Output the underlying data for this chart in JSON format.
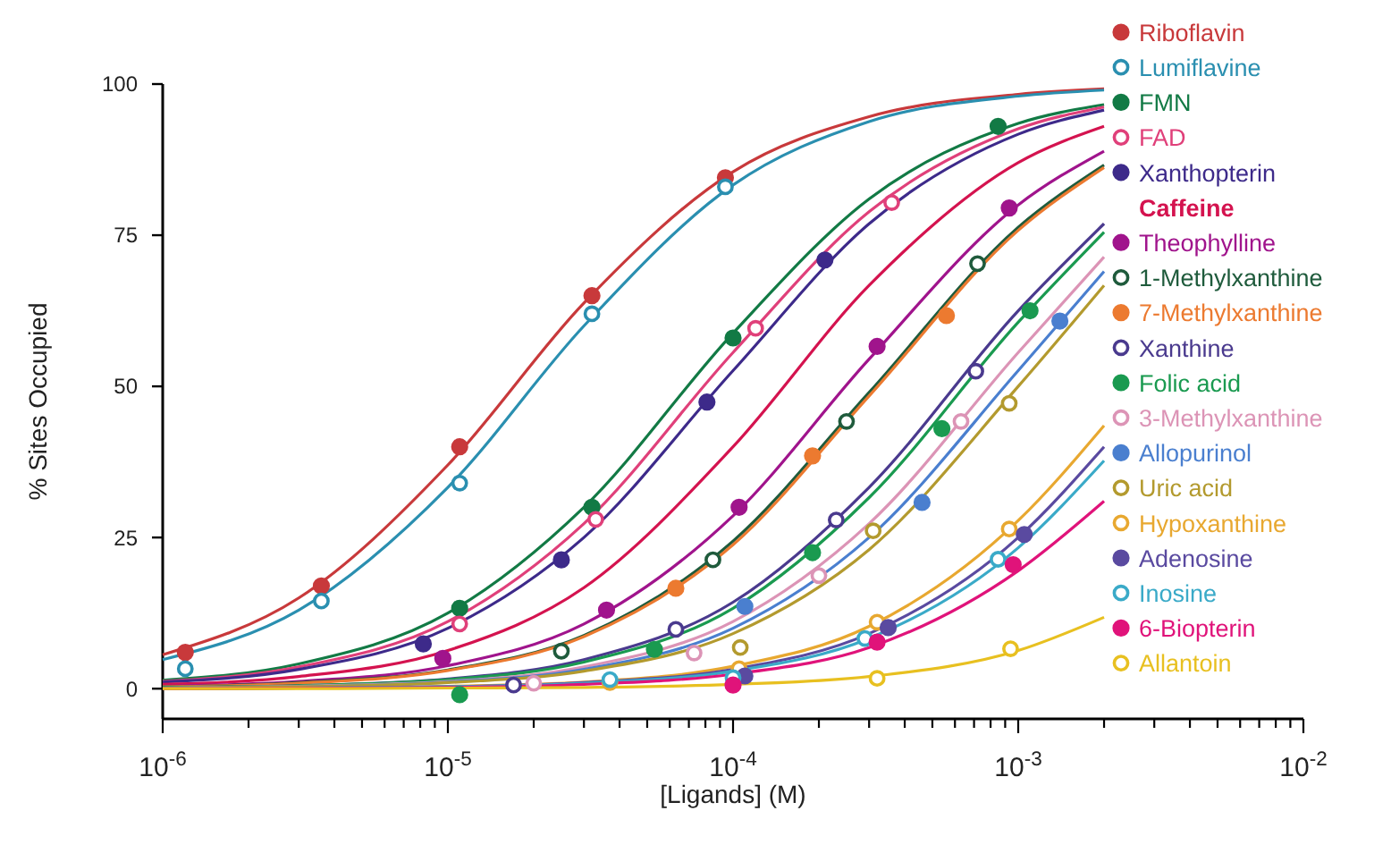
{
  "chart_data": {
    "type": "line",
    "xlabel": "[Ligands] (M)",
    "ylabel": "% Sites Occupied",
    "log": "x",
    "legend": "right",
    "xlim": [
      1e-06,
      0.01
    ],
    "ylim": [
      -5,
      100
    ],
    "yticks": [
      0,
      25,
      50,
      75,
      100
    ],
    "xticks": [
      {
        "value": 1e-06,
        "label": "10$^{-6}$"
      },
      {
        "value": 2e-06,
        "label": null
      },
      {
        "value": 3e-06,
        "label": null
      },
      {
        "value": 4e-06,
        "label": null
      },
      {
        "value": 5e-06,
        "label": null
      },
      {
        "value": 6e-06,
        "label": null
      },
      {
        "value": 7e-06,
        "label": null
      },
      {
        "value": 8e-06,
        "label": null
      },
      {
        "value": 9e-06,
        "label": null
      },
      {
        "value": 1e-05,
        "label": "10$^{-5}$"
      },
      {
        "value": 2e-05,
        "label": null
      },
      {
        "value": 3e-05,
        "label": null
      },
      {
        "value": 4e-05,
        "label": null
      },
      {
        "value": 5e-05,
        "label": null
      },
      {
        "value": 6e-05,
        "label": null
      },
      {
        "value": 7e-05,
        "label": null
      },
      {
        "value": 8e-05,
        "label": null
      },
      {
        "value": 9e-05,
        "label": null
      },
      {
        "value": 0.0001,
        "label": "10$^{-4}$"
      },
      {
        "value": 0.0002,
        "label": null
      },
      {
        "value": 0.0003,
        "label": null
      },
      {
        "value": 0.0004,
        "label": null
      },
      {
        "value": 0.0005,
        "label": null
      },
      {
        "value": 0.0006,
        "label": null
      },
      {
        "value": 0.0007,
        "label": null
      },
      {
        "value": 0.0008,
        "label": null
      },
      {
        "value": 0.0009,
        "label": null
      },
      {
        "value": 0.001,
        "label": "10$^{-3}$"
      },
      {
        "value": 0.002,
        "label": null
      },
      {
        "value": 0.003,
        "label": null
      },
      {
        "value": 0.004,
        "label": null
      },
      {
        "value": 0.005,
        "label": null
      },
      {
        "value": 0.006,
        "label": null
      },
      {
        "value": 0.007,
        "label": null
      },
      {
        "value": 0.008,
        "label": null
      },
      {
        "value": 0.009,
        "label": null
      },
      {
        "value": 0.01,
        "label": "10$^{-2}$"
      }
    ],
    "x": [
      1e-06,
      3e-06,
      1e-05,
      3e-05,
      0.0001,
      0.0003,
      0.001,
      0.002
    ],
    "series": [
      {
        "name": "Riboflavin",
        "type": "scatter",
        "marker": "circle",
        "color": "#c8393b",
        "x": [
          1.2e-06,
          3.6e-06,
          1.1e-05,
          3.2e-05,
          9.4e-05
        ],
        "values": [
          6,
          17,
          40,
          65,
          84.5
        ]
      },
      {
        "color": "#c8393b",
        "values": [
          5.6,
          15,
          37,
          63.8,
          85.5,
          94.6,
          98.3,
          99.2
        ]
      },
      {
        "name": "Lumiflavine",
        "type": "scatter",
        "marker": "circle-open",
        "color": "#2a8fb0",
        "x": [
          1.2e-06,
          3.6e-06,
          1.1e-05,
          3.2e-05,
          9.4e-05
        ],
        "values": [
          3.3,
          14.5,
          34,
          62,
          83
        ]
      },
      {
        "color": "#2a8fb0",
        "values": [
          4.8,
          13,
          33.3,
          60,
          83.3,
          93.8,
          98,
          99
        ]
      },
      {
        "name": "FMN",
        "type": "scatter",
        "marker": "circle",
        "color": "#127a45",
        "x": [
          1.1e-05,
          3.2e-05,
          0.0001,
          0.00085
        ],
        "values": [
          13.3,
          30,
          58,
          93
        ]
      },
      {
        "color": "#127a45",
        "values": [
          1.4,
          4.1,
          12.5,
          30,
          58.8,
          81,
          93.5,
          96.6
        ]
      },
      {
        "name": "FAD",
        "type": "scatter",
        "marker": "circle-open",
        "color": "#e0407a",
        "x": [
          1.1e-05,
          3.3e-05,
          0.00012,
          0.00036
        ],
        "values": [
          10.7,
          28,
          59.6,
          80.4
        ]
      },
      {
        "color": "#e0407a",
        "values": [
          1.2,
          3.6,
          11.1,
          27.3,
          55.6,
          78.9,
          92.6,
          96.2
        ]
      },
      {
        "name": "Xanthopterin",
        "type": "scatter",
        "marker": "circle",
        "color": "#3d2a8a",
        "x": [
          8.2e-06,
          2.5e-05,
          8.1e-05,
          0.00021
        ],
        "values": [
          7.4,
          21.3,
          47.4,
          70.9
        ]
      },
      {
        "color": "#3d2a8a",
        "values": [
          1.1,
          3.2,
          10,
          25,
          52.6,
          76.9,
          91.7,
          95.7
        ]
      },
      {
        "name": "Caffeine",
        "color": "#d4134f",
        "values": [
          0.7,
          2,
          6.3,
          16.7,
          40,
          66.7,
          87,
          93
        ]
      },
      {
        "name": "Theophylline",
        "type": "scatter",
        "marker": "circle",
        "color": "#a0148c",
        "x": [
          9.6e-06,
          3.6e-05,
          0.000105,
          0.00032,
          0.00093
        ],
        "values": [
          5,
          13,
          30,
          56.6,
          79.5
        ]
      },
      {
        "color": "#a0148c",
        "values": [
          0.4,
          1.2,
          3.8,
          10.7,
          28.6,
          54.5,
          80,
          88.9
        ]
      },
      {
        "name": "1-Methylxanthine",
        "type": "scatter",
        "marker": "circle-open",
        "color": "#1f5b3c",
        "x": [
          2.5e-05,
          8.5e-05,
          0.00025,
          0.00072
        ],
        "values": [
          6.2,
          21.3,
          44.2,
          70.3
        ]
      },
      {
        "color": "#1f5b3c",
        "values": [
          0.3,
          1,
          3.1,
          8.8,
          24.4,
          49,
          76.3,
          86.6
        ]
      },
      {
        "name": "7-Methylxanthine",
        "type": "scatter",
        "marker": "circle",
        "color": "#ec7a30",
        "x": [
          6.3e-05,
          0.00019,
          0.00056
        ],
        "values": [
          16.6,
          38.5,
          61.7
        ]
      },
      {
        "color": "#ec7a30",
        "values": [
          0.3,
          0.9,
          3,
          8.6,
          23.8,
          48.4,
          75.8,
          86.2
        ]
      },
      {
        "name": "Xanthine",
        "type": "scatter",
        "marker": "circle-open",
        "color": "#4a3a8e",
        "x": [
          1.7e-05,
          6.3e-05,
          0.00023,
          0.00071
        ],
        "values": [
          0.6,
          9.8,
          27.9,
          52.5
        ]
      },
      {
        "color": "#4a3a8e",
        "values": [
          0.2,
          0.5,
          1.6,
          4.8,
          14.3,
          33.3,
          62.5,
          76.9
        ]
      },
      {
        "name": "Folic acid",
        "type": "scatter",
        "marker": "circle",
        "color": "#1a9a50",
        "x": [
          1.1e-05,
          5.3e-05,
          0.00019,
          0.00054,
          0.0011
        ],
        "values": [
          -1,
          6.5,
          22.5,
          43,
          62.5
        ]
      },
      {
        "color": "#1a9a50",
        "values": [
          0.2,
          0.5,
          1.5,
          4.4,
          13.3,
          31.6,
          60.6,
          75.5
        ]
      },
      {
        "name": "3-Methylxanthine",
        "type": "scatter",
        "marker": "circle-open",
        "color": "#dc94b6",
        "x": [
          2e-05,
          7.3e-05,
          0.0002,
          0.00063
        ],
        "values": [
          0.9,
          5.9,
          18.7,
          44.2
        ]
      },
      {
        "color": "#dc94b6",
        "values": [
          0.1,
          0.4,
          1.2,
          3.6,
          11.1,
          27.3,
          55.6,
          71.4
        ]
      },
      {
        "name": "Allopurinol",
        "type": "scatter",
        "marker": "circle",
        "color": "#4a7fcf",
        "x": [
          0.00011,
          0.00046,
          0.0014
        ],
        "values": [
          13.6,
          30.8,
          60.8
        ]
      },
      {
        "color": "#4a7fcf",
        "values": [
          0.1,
          0.3,
          1.1,
          3.2,
          10,
          25,
          52.6,
          69
        ]
      },
      {
        "name": "Uric acid",
        "type": "scatter",
        "marker": "circle-open",
        "color": "#b39a2e",
        "x": [
          0.000106,
          0.00031,
          0.00093
        ],
        "values": [
          6.8,
          26.1,
          47.2
        ]
      },
      {
        "color": "#b39a2e",
        "values": [
          0.1,
          0.3,
          1,
          2.9,
          9.1,
          23,
          50,
          66.7
        ]
      },
      {
        "name": "Hypoxanthine",
        "type": "scatter",
        "marker": "circle-open",
        "color": "#e8a830",
        "x": [
          3.7e-05,
          0.000105,
          0.00032,
          0.00093
        ],
        "values": [
          1,
          3.3,
          11,
          26.4
        ]
      },
      {
        "color": "#e8a830",
        "values": [
          0,
          0.1,
          0.4,
          1.1,
          3.7,
          10.3,
          27.8,
          43.5
        ]
      },
      {
        "name": "Adenosine",
        "type": "scatter",
        "marker": "circle",
        "color": "#5a4aa0",
        "x": [
          0.00011,
          0.00035,
          0.00105
        ],
        "values": [
          2.1,
          10.1,
          25.5
        ]
      },
      {
        "color": "#5a4aa0",
        "values": [
          0,
          0.1,
          0.3,
          1,
          3.2,
          9.1,
          25,
          40
        ]
      },
      {
        "name": "Inosine",
        "type": "scatter",
        "marker": "circle-open",
        "color": "#3aaac8",
        "x": [
          3.7e-05,
          0.0001,
          0.00029,
          0.00085
        ],
        "values": [
          1.5,
          1.8,
          8.3,
          21.4
        ]
      },
      {
        "color": "#3aaac8",
        "values": [
          0,
          0.1,
          0.3,
          0.9,
          2.9,
          8.3,
          23.3,
          37.7
        ]
      },
      {
        "name": "6-Biopterin",
        "type": "scatter",
        "marker": "circle",
        "color": "#e0137a",
        "x": [
          0.0001,
          0.00032,
          0.00096
        ],
        "values": [
          0.6,
          7.7,
          20.5
        ]
      },
      {
        "color": "#e0137a",
        "values": [
          0,
          0.1,
          0.2,
          0.7,
          2.4,
          6.8,
          19.5,
          31
        ]
      },
      {
        "name": "Allantoin",
        "type": "scatter",
        "marker": "circle-open",
        "color": "#e8c020",
        "x": [
          0.00032,
          0.00094
        ],
        "values": [
          1.7,
          6.6
        ]
      },
      {
        "color": "#e8c020",
        "values": [
          0,
          0,
          0.1,
          0.2,
          0.7,
          2,
          6.3,
          11.8
        ]
      }
    ]
  }
}
